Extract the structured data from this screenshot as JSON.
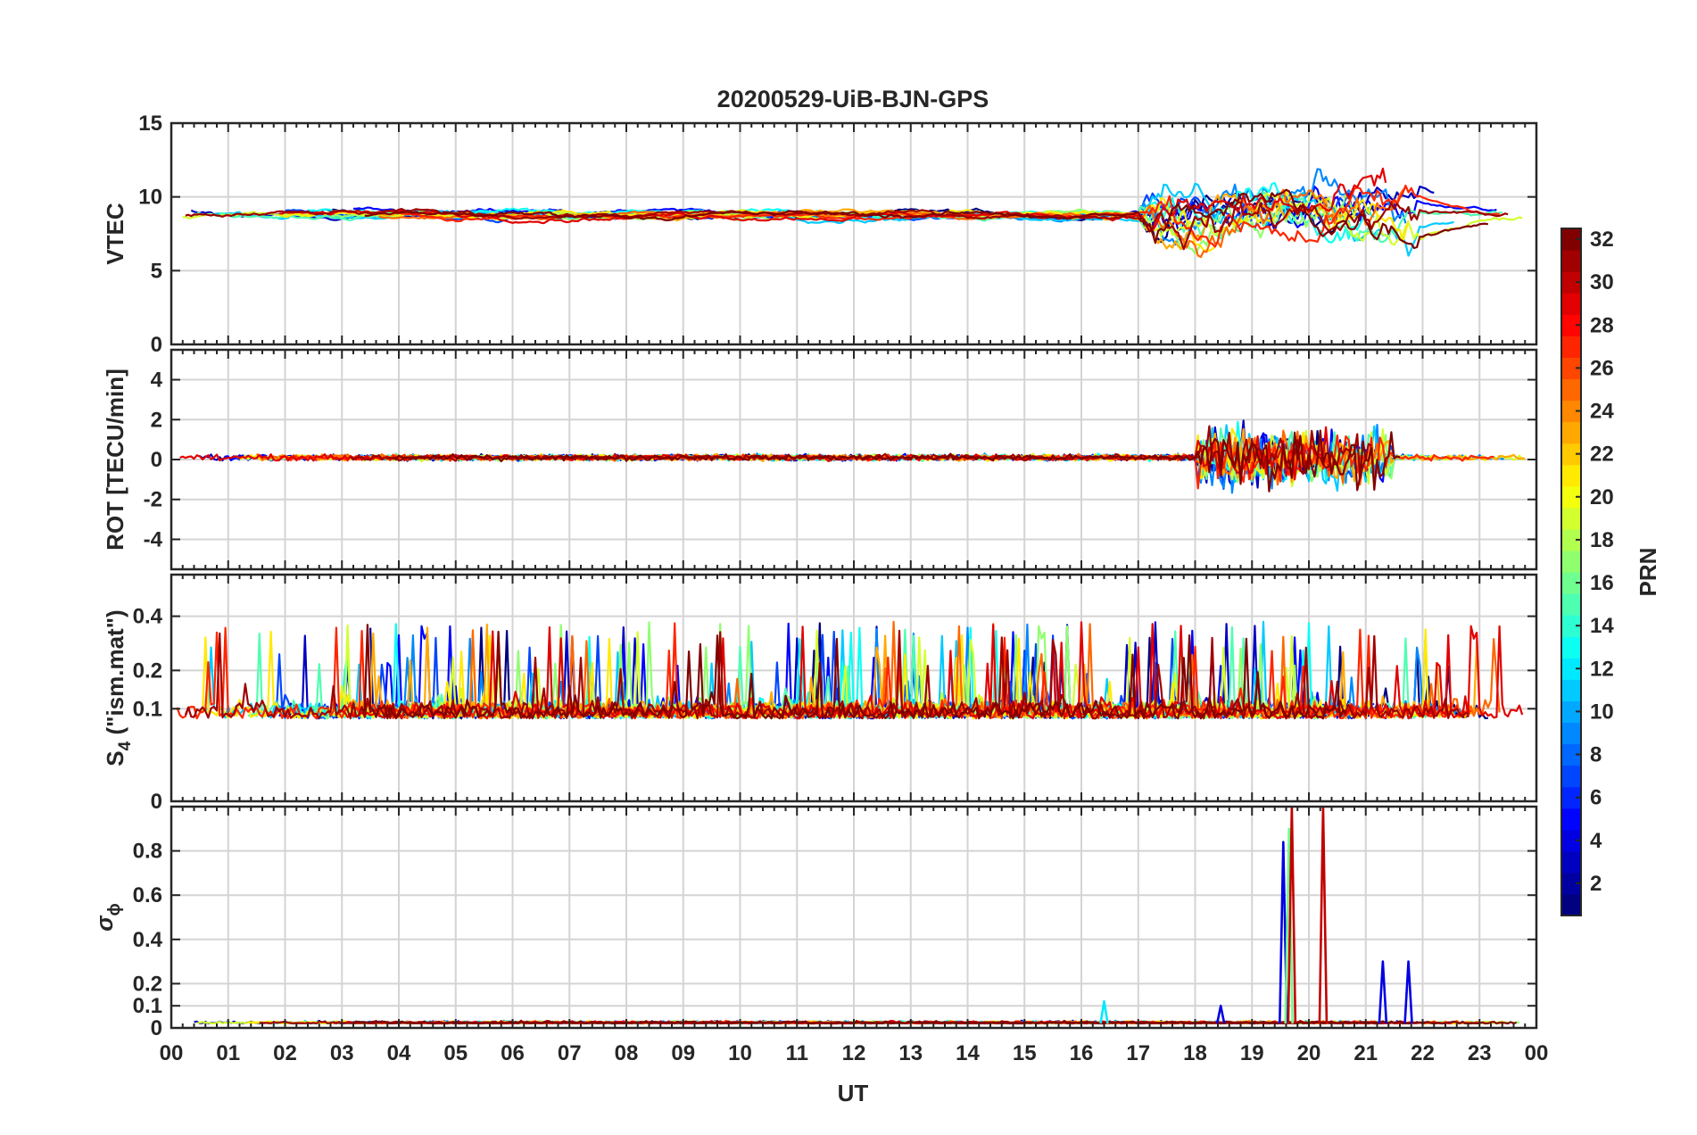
{
  "chart_data": {
    "type": "line",
    "title": "20200529-UiB-BJN-GPS",
    "xlabel": "UT",
    "x_tick_labels": [
      "00",
      "01",
      "02",
      "03",
      "04",
      "05",
      "06",
      "07",
      "08",
      "09",
      "10",
      "11",
      "12",
      "13",
      "14",
      "15",
      "16",
      "17",
      "18",
      "19",
      "20",
      "21",
      "22",
      "23",
      "00"
    ],
    "x_range_hours": [
      0,
      24
    ],
    "grid": true,
    "panels": [
      {
        "ylabel": "VTEC",
        "ylim": [
          0,
          15
        ],
        "yticks": [
          0,
          5,
          10,
          15
        ],
        "ytick_labels": [
          "0",
          "5",
          "10",
          "15"
        ],
        "baseline": 8.8,
        "noise": 0.3,
        "disturbed_window": [
          17,
          22
        ],
        "disturbed_noise": 1.3
      },
      {
        "ylabel": "ROT [TECU/min]",
        "ylim": [
          -5.5,
          5.5
        ],
        "yticks": [
          -4,
          -2,
          0,
          2,
          4
        ],
        "ytick_labels": [
          "-4",
          "-2",
          "0",
          "2",
          "4"
        ],
        "baseline": 0.1,
        "noise": 0.12,
        "disturbed_window": [
          18,
          21.5
        ],
        "disturbed_noise": 1.2
      },
      {
        "ylabel_main": "S",
        "ylabel_sub": "4",
        "ylabel_rest": " (\"ism.mat\")",
        "ylim": [
          0,
          0.6
        ],
        "yscale": "sqrt",
        "yticks": [
          0,
          0.1,
          0.2,
          0.4
        ],
        "ytick_labels": [
          "0",
          "0.1",
          "0.2",
          "0.4"
        ],
        "baseline": 0.08,
        "noise": 0.05,
        "spiky": true
      },
      {
        "ylabel_main": "σ",
        "ylabel_sub": "ϕ",
        "ylim": [
          0,
          1
        ],
        "yticks": [
          0,
          0.1,
          0.2,
          0.4,
          0.6,
          0.8
        ],
        "ytick_labels": [
          "0",
          "0.1",
          "0.2",
          "0.4",
          "0.6",
          "0.8"
        ],
        "baseline": 0.02,
        "noise": 0.008,
        "spikes": [
          {
            "t": 19.55,
            "v": 0.84,
            "prn": 4
          },
          {
            "t": 19.65,
            "v": 0.9,
            "prn": 16
          },
          {
            "t": 19.7,
            "v": 1.0,
            "prn": 30
          },
          {
            "t": 20.25,
            "v": 1.0,
            "prn": 30
          },
          {
            "t": 21.3,
            "v": 0.3,
            "prn": 4
          },
          {
            "t": 21.75,
            "v": 0.3,
            "prn": 4
          },
          {
            "t": 18.45,
            "v": 0.1,
            "prn": 4
          },
          {
            "t": 16.4,
            "v": 0.12,
            "prn": 12
          }
        ]
      }
    ],
    "colorbar": {
      "label": "PRN",
      "range": [
        1,
        32
      ],
      "ticks": [
        2,
        4,
        6,
        8,
        10,
        12,
        14,
        16,
        18,
        20,
        22,
        24,
        26,
        28,
        30,
        32
      ],
      "tick_labels": [
        "2",
        "4",
        "6",
        "8",
        "10",
        "12",
        "14",
        "16",
        "18",
        "20",
        "22",
        "24",
        "26",
        "28",
        "30",
        "32"
      ],
      "colormap": "jet"
    },
    "series_prn": [
      1,
      3,
      5,
      7,
      9,
      11,
      13,
      15,
      17,
      19,
      21,
      23,
      25,
      27,
      29,
      31,
      32
    ]
  }
}
